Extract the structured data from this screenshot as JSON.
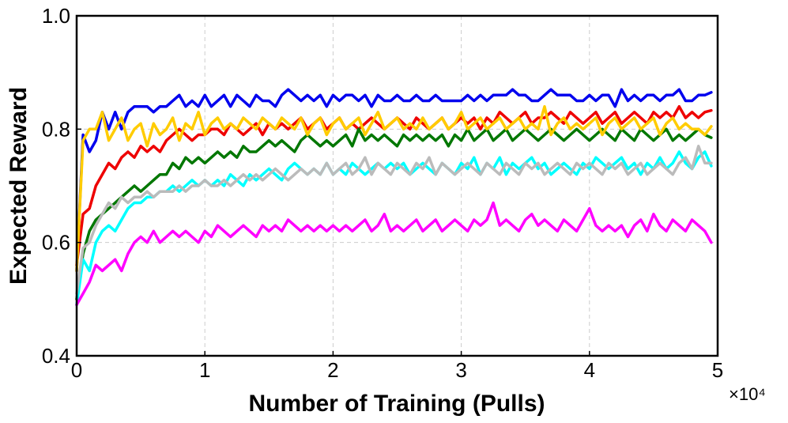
{
  "chart_data": {
    "type": "line",
    "title": "",
    "xlabel": "Number of Training (Pulls)",
    "ylabel": "Expected Reward",
    "x_multiplier_label": "×10⁴",
    "xlim": [
      0,
      5
    ],
    "ylim": [
      0.4,
      1.0
    ],
    "xticks": [
      "0",
      "1",
      "2",
      "3",
      "4",
      "5"
    ],
    "yticks": [
      "0.4",
      "0.6",
      "0.8",
      "1.0"
    ],
    "grid": true,
    "legend": "none",
    "x": [
      0.0,
      0.05,
      0.1,
      0.15,
      0.2,
      0.25,
      0.3,
      0.35,
      0.4,
      0.45,
      0.5,
      0.55,
      0.6,
      0.65,
      0.7,
      0.75,
      0.8,
      0.85,
      0.9,
      0.95,
      1.0,
      1.05,
      1.1,
      1.15,
      1.2,
      1.25,
      1.3,
      1.35,
      1.4,
      1.45,
      1.5,
      1.55,
      1.6,
      1.65,
      1.7,
      1.75,
      1.8,
      1.85,
      1.9,
      1.95,
      2.0,
      2.05,
      2.1,
      2.15,
      2.2,
      2.25,
      2.3,
      2.35,
      2.4,
      2.45,
      2.5,
      2.55,
      2.6,
      2.65,
      2.7,
      2.75,
      2.8,
      2.85,
      2.9,
      2.95,
      3.0,
      3.05,
      3.1,
      3.15,
      3.2,
      3.25,
      3.3,
      3.35,
      3.4,
      3.45,
      3.5,
      3.55,
      3.6,
      3.65,
      3.7,
      3.75,
      3.8,
      3.85,
      3.9,
      3.95,
      4.0,
      4.05,
      4.1,
      4.15,
      4.2,
      4.25,
      4.3,
      4.35,
      4.4,
      4.45,
      4.5,
      4.55,
      4.6,
      4.65,
      4.7,
      4.75,
      4.8,
      4.85,
      4.9,
      4.95
    ],
    "series": [
      {
        "color": "#0000ee",
        "values": [
          0.55,
          0.79,
          0.76,
          0.78,
          0.83,
          0.8,
          0.83,
          0.8,
          0.83,
          0.84,
          0.84,
          0.84,
          0.83,
          0.84,
          0.84,
          0.85,
          0.86,
          0.84,
          0.85,
          0.84,
          0.86,
          0.84,
          0.85,
          0.86,
          0.84,
          0.86,
          0.85,
          0.84,
          0.86,
          0.85,
          0.85,
          0.84,
          0.86,
          0.87,
          0.86,
          0.85,
          0.86,
          0.85,
          0.86,
          0.84,
          0.86,
          0.85,
          0.86,
          0.86,
          0.85,
          0.86,
          0.84,
          0.86,
          0.85,
          0.85,
          0.86,
          0.85,
          0.85,
          0.86,
          0.85,
          0.85,
          0.86,
          0.85,
          0.85,
          0.85,
          0.85,
          0.86,
          0.85,
          0.86,
          0.85,
          0.86,
          0.86,
          0.86,
          0.87,
          0.86,
          0.86,
          0.85,
          0.85,
          0.86,
          0.87,
          0.86,
          0.86,
          0.86,
          0.85,
          0.85,
          0.86,
          0.85,
          0.86,
          0.86,
          0.84,
          0.87,
          0.85,
          0.86,
          0.85,
          0.86,
          0.86,
          0.85,
          0.86,
          0.86,
          0.87,
          0.85,
          0.85,
          0.86,
          0.86,
          0.865
        ]
      },
      {
        "color": "#ee0000",
        "values": [
          0.56,
          0.65,
          0.66,
          0.7,
          0.72,
          0.74,
          0.73,
          0.75,
          0.76,
          0.75,
          0.77,
          0.76,
          0.77,
          0.76,
          0.78,
          0.79,
          0.8,
          0.79,
          0.78,
          0.79,
          0.79,
          0.8,
          0.8,
          0.79,
          0.81,
          0.8,
          0.79,
          0.8,
          0.81,
          0.79,
          0.81,
          0.8,
          0.81,
          0.8,
          0.81,
          0.82,
          0.8,
          0.81,
          0.82,
          0.8,
          0.81,
          0.82,
          0.8,
          0.81,
          0.8,
          0.81,
          0.82,
          0.81,
          0.8,
          0.81,
          0.82,
          0.81,
          0.8,
          0.82,
          0.81,
          0.8,
          0.81,
          0.82,
          0.8,
          0.81,
          0.82,
          0.81,
          0.82,
          0.8,
          0.82,
          0.81,
          0.83,
          0.82,
          0.81,
          0.82,
          0.83,
          0.81,
          0.82,
          0.82,
          0.83,
          0.82,
          0.81,
          0.83,
          0.82,
          0.81,
          0.82,
          0.83,
          0.81,
          0.82,
          0.83,
          0.81,
          0.82,
          0.83,
          0.82,
          0.81,
          0.83,
          0.82,
          0.83,
          0.82,
          0.84,
          0.82,
          0.83,
          0.82,
          0.83,
          0.833
        ]
      },
      {
        "color": "#007700",
        "values": [
          0.5,
          0.58,
          0.62,
          0.64,
          0.65,
          0.66,
          0.67,
          0.68,
          0.69,
          0.7,
          0.69,
          0.7,
          0.71,
          0.72,
          0.72,
          0.74,
          0.73,
          0.75,
          0.74,
          0.75,
          0.74,
          0.75,
          0.76,
          0.75,
          0.76,
          0.75,
          0.77,
          0.76,
          0.76,
          0.77,
          0.78,
          0.77,
          0.78,
          0.77,
          0.76,
          0.78,
          0.79,
          0.78,
          0.77,
          0.78,
          0.77,
          0.78,
          0.79,
          0.77,
          0.8,
          0.78,
          0.79,
          0.78,
          0.79,
          0.78,
          0.77,
          0.79,
          0.78,
          0.79,
          0.78,
          0.79,
          0.78,
          0.79,
          0.77,
          0.79,
          0.78,
          0.8,
          0.78,
          0.79,
          0.8,
          0.78,
          0.79,
          0.8,
          0.78,
          0.79,
          0.8,
          0.79,
          0.78,
          0.79,
          0.8,
          0.79,
          0.78,
          0.79,
          0.8,
          0.79,
          0.78,
          0.79,
          0.8,
          0.79,
          0.78,
          0.8,
          0.79,
          0.78,
          0.8,
          0.79,
          0.78,
          0.79,
          0.8,
          0.78,
          0.79,
          0.78,
          0.79,
          0.8,
          0.79,
          0.785
        ]
      },
      {
        "color": "#ffcc00",
        "values": [
          0.55,
          0.78,
          0.8,
          0.8,
          0.83,
          0.78,
          0.8,
          0.82,
          0.78,
          0.8,
          0.81,
          0.77,
          0.81,
          0.79,
          0.8,
          0.82,
          0.78,
          0.81,
          0.8,
          0.83,
          0.79,
          0.81,
          0.82,
          0.8,
          0.81,
          0.8,
          0.82,
          0.81,
          0.8,
          0.82,
          0.81,
          0.8,
          0.82,
          0.81,
          0.8,
          0.82,
          0.79,
          0.81,
          0.82,
          0.79,
          0.81,
          0.82,
          0.8,
          0.81,
          0.82,
          0.79,
          0.81,
          0.83,
          0.8,
          0.81,
          0.82,
          0.8,
          0.81,
          0.8,
          0.82,
          0.8,
          0.81,
          0.82,
          0.8,
          0.81,
          0.83,
          0.8,
          0.81,
          0.82,
          0.8,
          0.81,
          0.82,
          0.8,
          0.81,
          0.82,
          0.8,
          0.81,
          0.8,
          0.84,
          0.79,
          0.81,
          0.82,
          0.8,
          0.81,
          0.8,
          0.81,
          0.82,
          0.79,
          0.81,
          0.82,
          0.8,
          0.81,
          0.82,
          0.8,
          0.81,
          0.82,
          0.79,
          0.81,
          0.82,
          0.8,
          0.81,
          0.8,
          0.8,
          0.79,
          0.805
        ]
      },
      {
        "color": "#00ffff",
        "values": [
          0.49,
          0.57,
          0.55,
          0.6,
          0.62,
          0.63,
          0.62,
          0.64,
          0.66,
          0.67,
          0.67,
          0.68,
          0.68,
          0.69,
          0.69,
          0.7,
          0.69,
          0.7,
          0.71,
          0.7,
          0.71,
          0.7,
          0.71,
          0.7,
          0.72,
          0.71,
          0.7,
          0.72,
          0.71,
          0.72,
          0.73,
          0.72,
          0.71,
          0.73,
          0.74,
          0.73,
          0.72,
          0.73,
          0.72,
          0.74,
          0.72,
          0.73,
          0.72,
          0.74,
          0.73,
          0.72,
          0.73,
          0.74,
          0.73,
          0.74,
          0.73,
          0.74,
          0.72,
          0.73,
          0.74,
          0.73,
          0.72,
          0.74,
          0.73,
          0.72,
          0.74,
          0.73,
          0.75,
          0.72,
          0.74,
          0.73,
          0.75,
          0.72,
          0.74,
          0.73,
          0.74,
          0.75,
          0.73,
          0.74,
          0.72,
          0.73,
          0.74,
          0.73,
          0.72,
          0.74,
          0.73,
          0.75,
          0.74,
          0.73,
          0.74,
          0.75,
          0.73,
          0.74,
          0.72,
          0.74,
          0.73,
          0.75,
          0.73,
          0.74,
          0.76,
          0.74,
          0.73,
          0.75,
          0.76,
          0.735
        ]
      },
      {
        "color": "#bbbbbb",
        "values": [
          0.51,
          0.59,
          0.6,
          0.63,
          0.65,
          0.67,
          0.66,
          0.68,
          0.67,
          0.68,
          0.68,
          0.69,
          0.68,
          0.69,
          0.69,
          0.69,
          0.7,
          0.69,
          0.7,
          0.7,
          0.71,
          0.7,
          0.7,
          0.71,
          0.7,
          0.71,
          0.72,
          0.71,
          0.72,
          0.71,
          0.72,
          0.73,
          0.72,
          0.71,
          0.72,
          0.73,
          0.72,
          0.73,
          0.72,
          0.74,
          0.72,
          0.73,
          0.74,
          0.72,
          0.73,
          0.75,
          0.72,
          0.74,
          0.73,
          0.72,
          0.74,
          0.73,
          0.72,
          0.74,
          0.73,
          0.75,
          0.72,
          0.74,
          0.73,
          0.72,
          0.73,
          0.74,
          0.73,
          0.72,
          0.74,
          0.73,
          0.72,
          0.74,
          0.73,
          0.72,
          0.74,
          0.73,
          0.74,
          0.72,
          0.73,
          0.74,
          0.73,
          0.72,
          0.74,
          0.73,
          0.74,
          0.73,
          0.72,
          0.74,
          0.73,
          0.74,
          0.72,
          0.73,
          0.74,
          0.72,
          0.73,
          0.74,
          0.73,
          0.72,
          0.74,
          0.75,
          0.73,
          0.77,
          0.74,
          0.74
        ]
      },
      {
        "color": "#ff00ff",
        "values": [
          0.49,
          0.51,
          0.53,
          0.56,
          0.55,
          0.56,
          0.57,
          0.55,
          0.58,
          0.6,
          0.61,
          0.6,
          0.62,
          0.6,
          0.61,
          0.62,
          0.61,
          0.62,
          0.61,
          0.6,
          0.62,
          0.61,
          0.63,
          0.62,
          0.61,
          0.62,
          0.63,
          0.62,
          0.61,
          0.63,
          0.62,
          0.63,
          0.62,
          0.64,
          0.63,
          0.62,
          0.63,
          0.62,
          0.63,
          0.62,
          0.63,
          0.62,
          0.63,
          0.62,
          0.63,
          0.64,
          0.62,
          0.63,
          0.65,
          0.62,
          0.63,
          0.62,
          0.63,
          0.64,
          0.62,
          0.63,
          0.64,
          0.62,
          0.63,
          0.64,
          0.63,
          0.62,
          0.64,
          0.63,
          0.64,
          0.67,
          0.63,
          0.64,
          0.63,
          0.62,
          0.64,
          0.65,
          0.63,
          0.64,
          0.63,
          0.62,
          0.64,
          0.63,
          0.62,
          0.64,
          0.66,
          0.63,
          0.62,
          0.63,
          0.62,
          0.63,
          0.61,
          0.63,
          0.64,
          0.62,
          0.65,
          0.63,
          0.62,
          0.64,
          0.63,
          0.62,
          0.64,
          0.63,
          0.62,
          0.6
        ]
      }
    ]
  }
}
